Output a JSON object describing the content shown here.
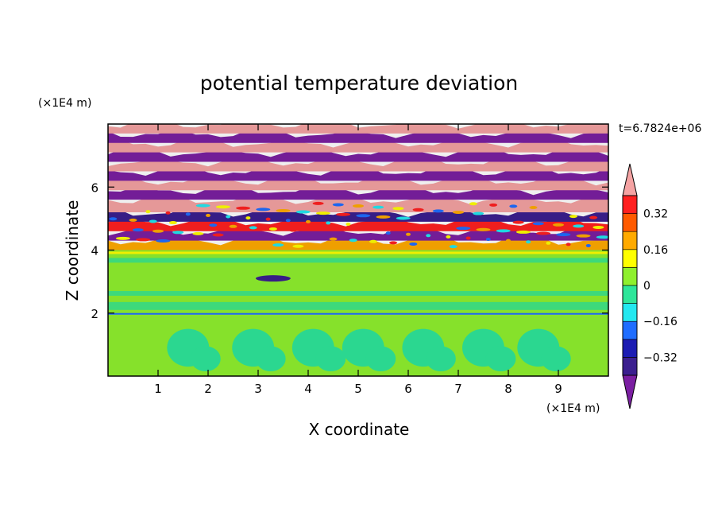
{
  "chart_data": {
    "type": "heatmap",
    "title": "potential temperature deviation",
    "xlabel": "X coordinate",
    "ylabel": "Z coordinate",
    "x_unit": "(×1E4 m)",
    "y_unit": "(×1E4 m)",
    "time_label": "t=6.7824e+06",
    "xlim": [
      0,
      10
    ],
    "ylim": [
      0,
      8
    ],
    "x_ticks": [
      "1",
      "2",
      "3",
      "4",
      "5",
      "6",
      "7",
      "8",
      "9"
    ],
    "y_ticks": [
      "2",
      "4",
      "6"
    ],
    "colorbar": {
      "levels": [
        -0.4,
        -0.32,
        -0.24,
        -0.16,
        -0.08,
        0,
        0.08,
        0.16,
        0.24,
        0.32,
        0.4
      ],
      "tick_labels": [
        "0.32",
        "0.16",
        "0",
        "−0.16",
        "−0.32"
      ],
      "tick_values": [
        0.32,
        0.16,
        0,
        -0.16,
        -0.32
      ],
      "colors": [
        "#7b1fa2",
        "#3b1f8f",
        "#1c1cb3",
        "#1f6dff",
        "#23e8f0",
        "#2ee69a",
        "#8ff02e",
        "#ffff00",
        "#ffaa00",
        "#ff5a00",
        "#ff2020",
        "#f5a3a3"
      ],
      "extend": "both"
    },
    "regions": [
      {
        "zmin": 0,
        "zmax": 1.9,
        "value": -0.02,
        "desc_value_band": "near zero with rolls ~-0.06"
      },
      {
        "zmin": 1.9,
        "zmax": 4.0,
        "value": 0.02,
        "desc_value_band": "near zero"
      },
      {
        "zmin": 4.0,
        "zmax": 5.5,
        "value": 0.1,
        "desc_value_band": "mixed, strong fluctuations"
      },
      {
        "zmin": 5.5,
        "zmax": 8.0,
        "value": 0.0,
        "desc_value_band": "alternating ±0.4 layers"
      }
    ]
  }
}
